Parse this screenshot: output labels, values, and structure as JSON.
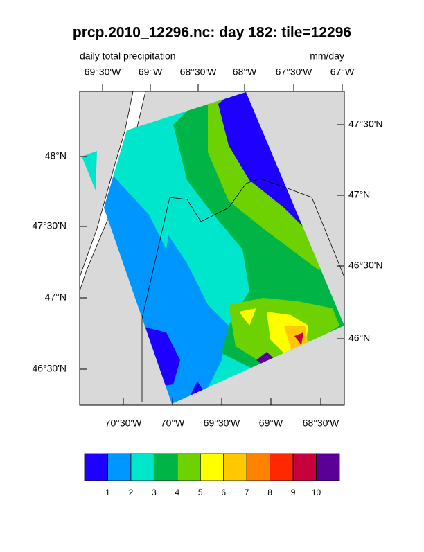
{
  "title": "prcp.2010_12296.nc: day 182: tile=12296",
  "left_string": "daily total precipitation",
  "right_string": "mm/day",
  "top_axis_labels": [
    "69°30'W",
    "69°W",
    "68°30'W",
    "68°W",
    "67°30'W",
    "67°W"
  ],
  "right_axis_labels": [
    "47°30'N",
    "47°N",
    "46°30'N",
    "46°N"
  ],
  "left_axis_labels": [
    "48°N",
    "47°30'N",
    "47°N",
    "46°30'N"
  ],
  "bottom_axis_labels": [
    "70°30'W",
    "70°W",
    "69°30'W",
    "69°W",
    "68°30'W"
  ],
  "colorbar": {
    "colors": [
      "#1e00ff",
      "#0096ff",
      "#00e6cd",
      "#00b446",
      "#6ed200",
      "#ffff00",
      "#ffc800",
      "#ff8200",
      "#ff2800",
      "#c8003c",
      "#5a0096"
    ],
    "labels": [
      1,
      2,
      3,
      4,
      5,
      6,
      7,
      8,
      9,
      10
    ]
  }
}
